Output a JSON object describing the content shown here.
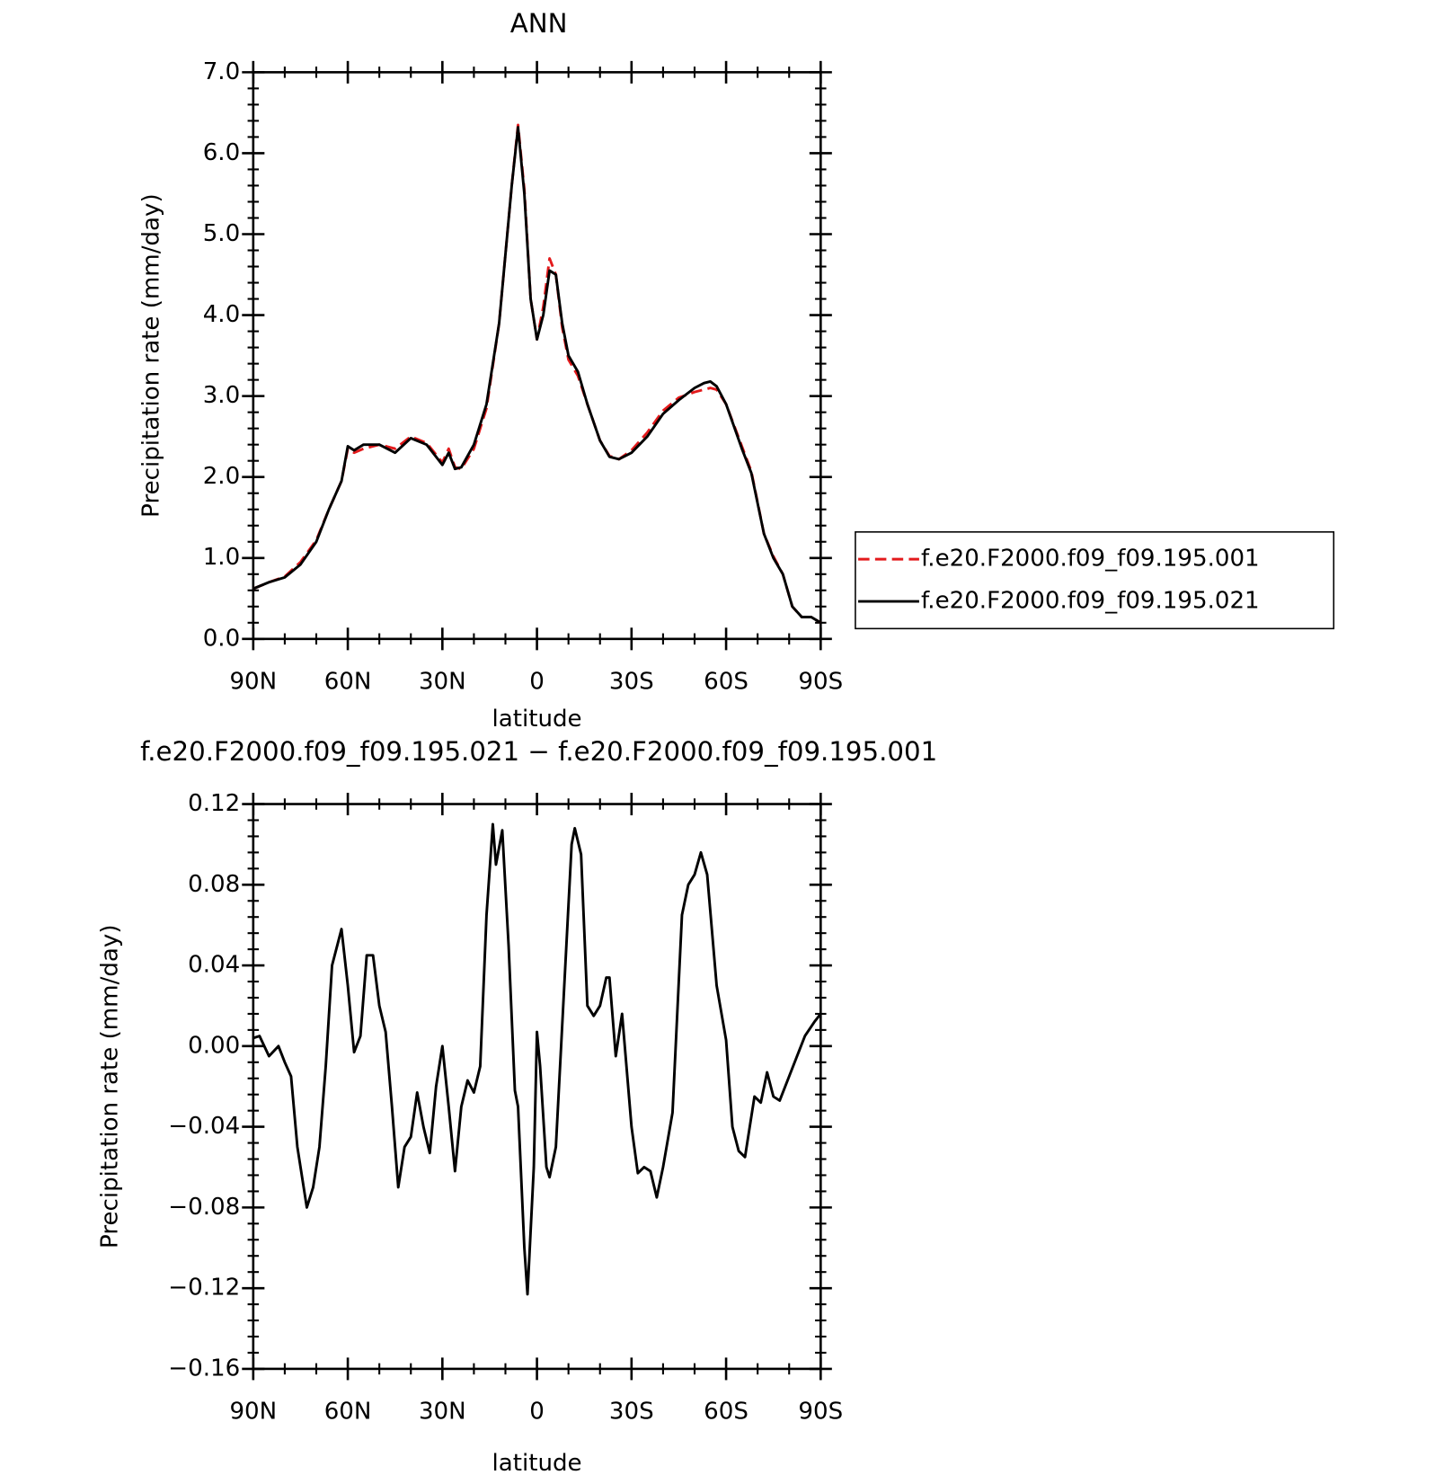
{
  "chart_data": [
    {
      "type": "line",
      "title": "ANN",
      "xlabel": "latitude",
      "ylabel": "Precipitation rate (mm/day)",
      "xlim": [
        90,
        -90
      ],
      "ylim": [
        0,
        7
      ],
      "xticks": [
        {
          "value": 90,
          "label": "90N"
        },
        {
          "value": 60,
          "label": "60N"
        },
        {
          "value": 30,
          "label": "30N"
        },
        0,
        {
          "value": -30,
          "label": "30S"
        },
        {
          "value": -60,
          "label": "60S"
        },
        {
          "value": -90,
          "label": "90S"
        }
      ],
      "yticks": [
        {
          "value": 0,
          "label": "0.0"
        },
        {
          "value": 1,
          "label": "1.0"
        },
        {
          "value": 2,
          "label": "2.0"
        },
        {
          "value": 3,
          "label": "3.0"
        },
        {
          "value": 4,
          "label": "4.0"
        },
        {
          "value": 5,
          "label": "5.0"
        },
        {
          "value": 6,
          "label": "6.0"
        },
        {
          "value": 7,
          "label": "7.0"
        }
      ],
      "legend": "right",
      "x": [
        90,
        85,
        80,
        75,
        70,
        66,
        62,
        60,
        58,
        55,
        50,
        45,
        40,
        35,
        30,
        28,
        26,
        24,
        20,
        16,
        12,
        8,
        6,
        4,
        2,
        0,
        -2,
        -4,
        -6,
        -8,
        -10,
        -13,
        -16,
        -20,
        -23,
        -26,
        -30,
        -35,
        -40,
        -45,
        -50,
        -53,
        -55,
        -57,
        -60,
        -65,
        -68,
        -72,
        -75,
        -78,
        -81,
        -84,
        -87,
        -90
      ],
      "series": [
        {
          "name": "f.e20.F2000.f09_f09.195.001",
          "color": "#e31a1c",
          "line_style": "dashed",
          "values": [
            0.62,
            0.7,
            0.77,
            0.95,
            1.22,
            1.6,
            1.95,
            2.35,
            2.3,
            2.35,
            2.4,
            2.35,
            2.5,
            2.42,
            2.18,
            2.35,
            2.12,
            2.1,
            2.35,
            2.85,
            3.9,
            5.6,
            6.35,
            5.55,
            4.2,
            3.7,
            4.1,
            4.7,
            4.5,
            3.85,
            3.45,
            3.25,
            2.9,
            2.45,
            2.26,
            2.22,
            2.33,
            2.55,
            2.82,
            2.98,
            3.05,
            3.08,
            3.1,
            3.08,
            2.9,
            2.38,
            2.07,
            1.3,
            1.02,
            0.8,
            0.4,
            0.27,
            0.27,
            0.2
          ]
        },
        {
          "name": "f.e20.F2000.f09_f09.195.021",
          "color": "#000000",
          "line_style": "solid",
          "values": [
            0.62,
            0.7,
            0.76,
            0.92,
            1.2,
            1.6,
            1.95,
            2.38,
            2.33,
            2.4,
            2.4,
            2.3,
            2.48,
            2.4,
            2.15,
            2.3,
            2.1,
            2.12,
            2.4,
            2.9,
            3.9,
            5.6,
            6.32,
            5.5,
            4.2,
            3.7,
            4.0,
            4.55,
            4.5,
            3.9,
            3.5,
            3.3,
            2.9,
            2.45,
            2.25,
            2.22,
            2.3,
            2.5,
            2.78,
            2.95,
            3.1,
            3.16,
            3.18,
            3.12,
            2.9,
            2.35,
            2.05,
            1.3,
            1.0,
            0.8,
            0.4,
            0.27,
            0.27,
            0.2
          ]
        }
      ]
    },
    {
      "type": "line",
      "title": "f.e20.F2000.f09_f09.195.021 − f.e20.F2000.f09_f09.195.001",
      "xlabel": "latitude",
      "ylabel": "Precipitation rate (mm/day)",
      "xlim": [
        90,
        -90
      ],
      "ylim": [
        -0.16,
        0.12
      ],
      "xticks": [
        {
          "value": 90,
          "label": "90N"
        },
        {
          "value": 60,
          "label": "60N"
        },
        {
          "value": 30,
          "label": "30N"
        },
        0,
        {
          "value": -30,
          "label": "30S"
        },
        {
          "value": -60,
          "label": "60S"
        },
        {
          "value": -90,
          "label": "90S"
        }
      ],
      "yticks": [
        {
          "value": -0.16,
          "label": "−0.16"
        },
        {
          "value": -0.12,
          "label": "−0.12"
        },
        {
          "value": -0.08,
          "label": "−0.08"
        },
        {
          "value": -0.04,
          "label": "−0.04"
        },
        {
          "value": 0,
          "label": "0.00"
        },
        0.04,
        0.08,
        0.12
      ],
      "x": [
        90,
        88,
        85,
        82,
        80,
        78,
        76,
        73,
        71,
        69,
        67,
        65,
        62,
        60,
        58,
        56,
        54,
        52,
        50,
        48,
        46,
        44,
        42,
        40,
        38,
        36,
        34,
        32,
        30,
        28,
        26,
        24,
        22,
        20,
        18,
        16,
        14,
        13,
        11,
        9,
        7,
        6,
        4,
        3,
        1,
        0,
        -1,
        -3,
        -4,
        -6,
        -8,
        -11,
        -12,
        -14,
        -16,
        -18,
        -20,
        -22,
        -23,
        -25,
        -27,
        -30,
        -32,
        -34,
        -36,
        -38,
        -40,
        -43,
        -46,
        -48,
        -50,
        -52,
        -54,
        -57,
        -60,
        -62,
        -64,
        -66,
        -69,
        -71,
        -73,
        -75,
        -77,
        -80,
        -85,
        -88,
        -90
      ],
      "series": [
        {
          "color": "#000000",
          "line_style": "solid",
          "values": [
            0.004,
            0.005,
            -0.005,
            0.0,
            -0.008,
            -0.015,
            -0.05,
            -0.08,
            -0.07,
            -0.05,
            -0.01,
            0.04,
            0.058,
            0.03,
            -0.003,
            0.005,
            0.045,
            0.045,
            0.02,
            0.007,
            -0.03,
            -0.07,
            -0.05,
            -0.045,
            -0.023,
            -0.04,
            -0.053,
            -0.02,
            0.0,
            -0.03,
            -0.062,
            -0.03,
            -0.017,
            -0.023,
            -0.01,
            0.065,
            0.11,
            0.09,
            0.107,
            0.05,
            -0.022,
            -0.03,
            -0.1,
            -0.123,
            -0.06,
            0.007,
            -0.01,
            -0.06,
            -0.065,
            -0.05,
            0.01,
            0.1,
            0.108,
            0.095,
            0.02,
            0.015,
            0.02,
            0.034,
            0.034,
            -0.005,
            0.016,
            -0.04,
            -0.063,
            -0.06,
            -0.062,
            -0.075,
            -0.06,
            -0.033,
            0.065,
            0.08,
            0.085,
            0.096,
            0.085,
            0.03,
            0.003,
            -0.04,
            -0.052,
            -0.055,
            -0.025,
            -0.028,
            -0.013,
            -0.025,
            -0.027,
            -0.015,
            0.005,
            0.012,
            0.016
          ]
        }
      ]
    }
  ]
}
